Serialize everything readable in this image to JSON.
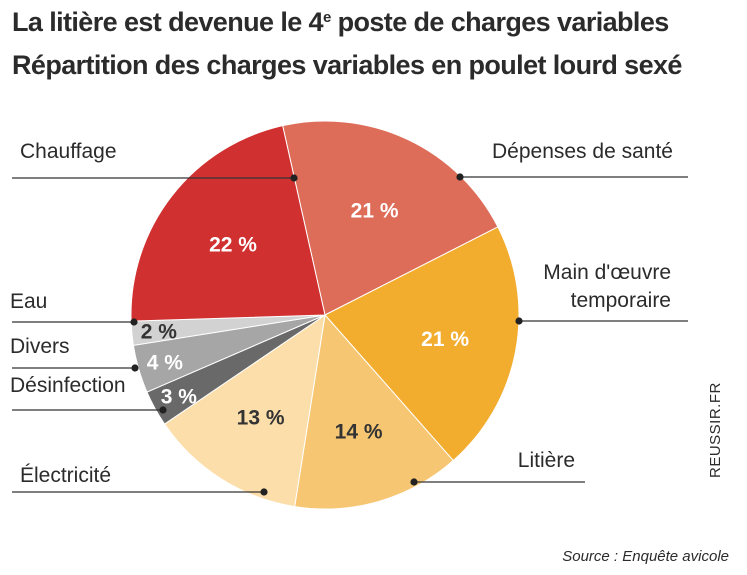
{
  "header": {
    "title_part1": "La litière est devenue le 4",
    "title_sup": "e",
    "title_part2": " poste de charges variables",
    "subtitle": "Répartition des charges variables en poulet lourd sexé"
  },
  "credit": "REUSSIR.FR",
  "source": "Source : Enquête avicole",
  "chart_data": {
    "type": "pie",
    "title": "La litière est devenue le 4e poste de charges variables",
    "subtitle": "Répartition des charges variables en poulet lourd sexé",
    "slices": [
      {
        "label": "Dépenses de santé",
        "value": 21,
        "value_label": "21 %",
        "color": "#dd6c58"
      },
      {
        "label": "Main d'œuvre temporaire",
        "value": 21,
        "value_label": "21 %",
        "color": "#f2ac2e"
      },
      {
        "label": "Litière",
        "value": 14,
        "value_label": "14 %",
        "color": "#f6c672"
      },
      {
        "label": "Électricité",
        "value": 13,
        "value_label": "13 %",
        "color": "#fbdeaa"
      },
      {
        "label": "Désinfection",
        "value": 3,
        "value_label": "3 %",
        "color": "#696969"
      },
      {
        "label": "Divers",
        "value": 4,
        "value_label": "4 %",
        "color": "#a6a6a6"
      },
      {
        "label": "Eau",
        "value": 2,
        "value_label": "2 %",
        "color": "#d2d2d2"
      },
      {
        "label": "Chauffage",
        "value": 22,
        "value_label": "22 %",
        "color": "#d03030"
      }
    ]
  }
}
